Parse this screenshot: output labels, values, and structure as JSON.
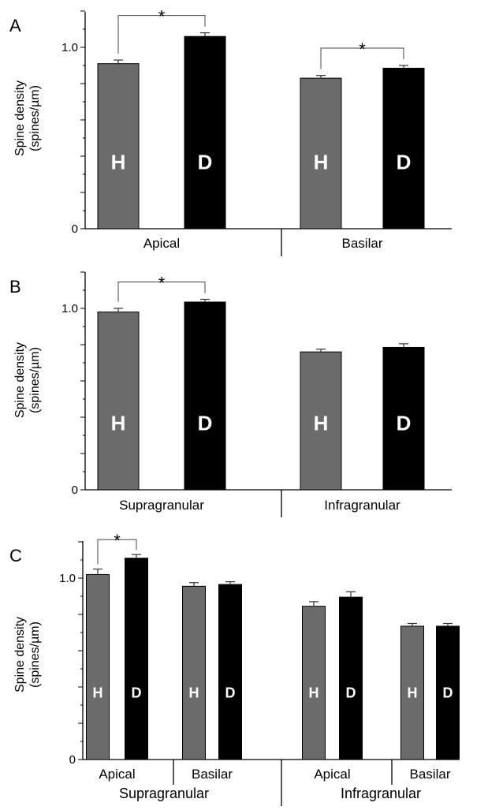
{
  "colors": {
    "H": "#6b6b6b",
    "D": "#000000",
    "error": "#333333"
  },
  "chart_data": [
    {
      "type": "bar",
      "panel": "A",
      "ylabel": [
        "Spine density",
        "(spines/µm)"
      ],
      "yticks": [
        {
          "value": 0,
          "label": "0"
        },
        {
          "value": 1.0,
          "label": "1.0"
        }
      ],
      "ylim": [
        0,
        1.2
      ],
      "categories": [
        "Apical",
        "Basilar"
      ],
      "series": [
        {
          "key": "H",
          "label": "H",
          "values": [
            0.91,
            0.83
          ],
          "errors": [
            0.02,
            0.015
          ]
        },
        {
          "key": "D",
          "label": "D",
          "values": [
            1.06,
            0.885
          ],
          "errors": [
            0.02,
            0.015
          ]
        }
      ],
      "significance": [
        {
          "category_index": 0,
          "symbol": "*"
        },
        {
          "category_index": 1,
          "symbol": "*"
        }
      ]
    },
    {
      "type": "bar",
      "panel": "B",
      "ylabel": [
        "Spine density",
        "(spines/µm)"
      ],
      "yticks": [
        {
          "value": 0,
          "label": "0"
        },
        {
          "value": 1.0,
          "label": "1.0"
        }
      ],
      "ylim": [
        0,
        1.2
      ],
      "categories": [
        "Supragranular",
        "Infragranular"
      ],
      "series": [
        {
          "key": "H",
          "label": "H",
          "values": [
            0.98,
            0.76
          ],
          "errors": [
            0.02,
            0.015
          ]
        },
        {
          "key": "D",
          "label": "D",
          "values": [
            1.035,
            0.785
          ],
          "errors": [
            0.015,
            0.02
          ]
        }
      ],
      "significance": [
        {
          "category_index": 0,
          "symbol": "*"
        }
      ]
    },
    {
      "type": "bar",
      "panel": "C",
      "ylabel": [
        "Spine density",
        "(spines/µm)"
      ],
      "yticks": [
        {
          "value": 0,
          "label": "0"
        },
        {
          "value": 1.0,
          "label": "1.0"
        }
      ],
      "ylim": [
        0,
        1.2
      ],
      "categories": [
        "Apical",
        "Basilar",
        "Apical",
        "Basilar"
      ],
      "groups": [
        {
          "label": "Supragranular",
          "category_indices": [
            0,
            1
          ]
        },
        {
          "label": "Infragranular",
          "category_indices": [
            2,
            3
          ]
        }
      ],
      "series": [
        {
          "key": "H",
          "label": "H",
          "values": [
            1.02,
            0.955,
            0.845,
            0.735
          ],
          "errors": [
            0.03,
            0.02,
            0.025,
            0.015
          ]
        },
        {
          "key": "D",
          "label": "D",
          "values": [
            1.11,
            0.965,
            0.895,
            0.735
          ],
          "errors": [
            0.02,
            0.015,
            0.03,
            0.015
          ]
        }
      ],
      "significance": [
        {
          "category_index": 0,
          "symbol": "*"
        }
      ]
    }
  ]
}
